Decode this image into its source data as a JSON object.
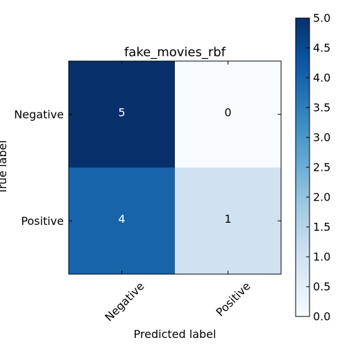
{
  "chart_data": {
    "type": "heatmap",
    "title": "fake_movies_rbf",
    "xlabel": "Predicted label",
    "ylabel": "True label",
    "x_categories": [
      "Negative",
      "Positive"
    ],
    "y_categories": [
      "Negative",
      "Positive"
    ],
    "values": [
      [
        5,
        0
      ],
      [
        4,
        1
      ]
    ],
    "colorbar": {
      "range": [
        0.0,
        5.0
      ],
      "ticks": [
        "0.0",
        "0.5",
        "1.0",
        "1.5",
        "2.0",
        "2.5",
        "3.0",
        "3.5",
        "4.0",
        "4.5",
        "5.0"
      ]
    },
    "colormap": "Blues",
    "colors": {
      "low": "#f7fbff",
      "high": "#08306b",
      "dark_text": "#000000",
      "light_text": "#ffffff"
    }
  }
}
